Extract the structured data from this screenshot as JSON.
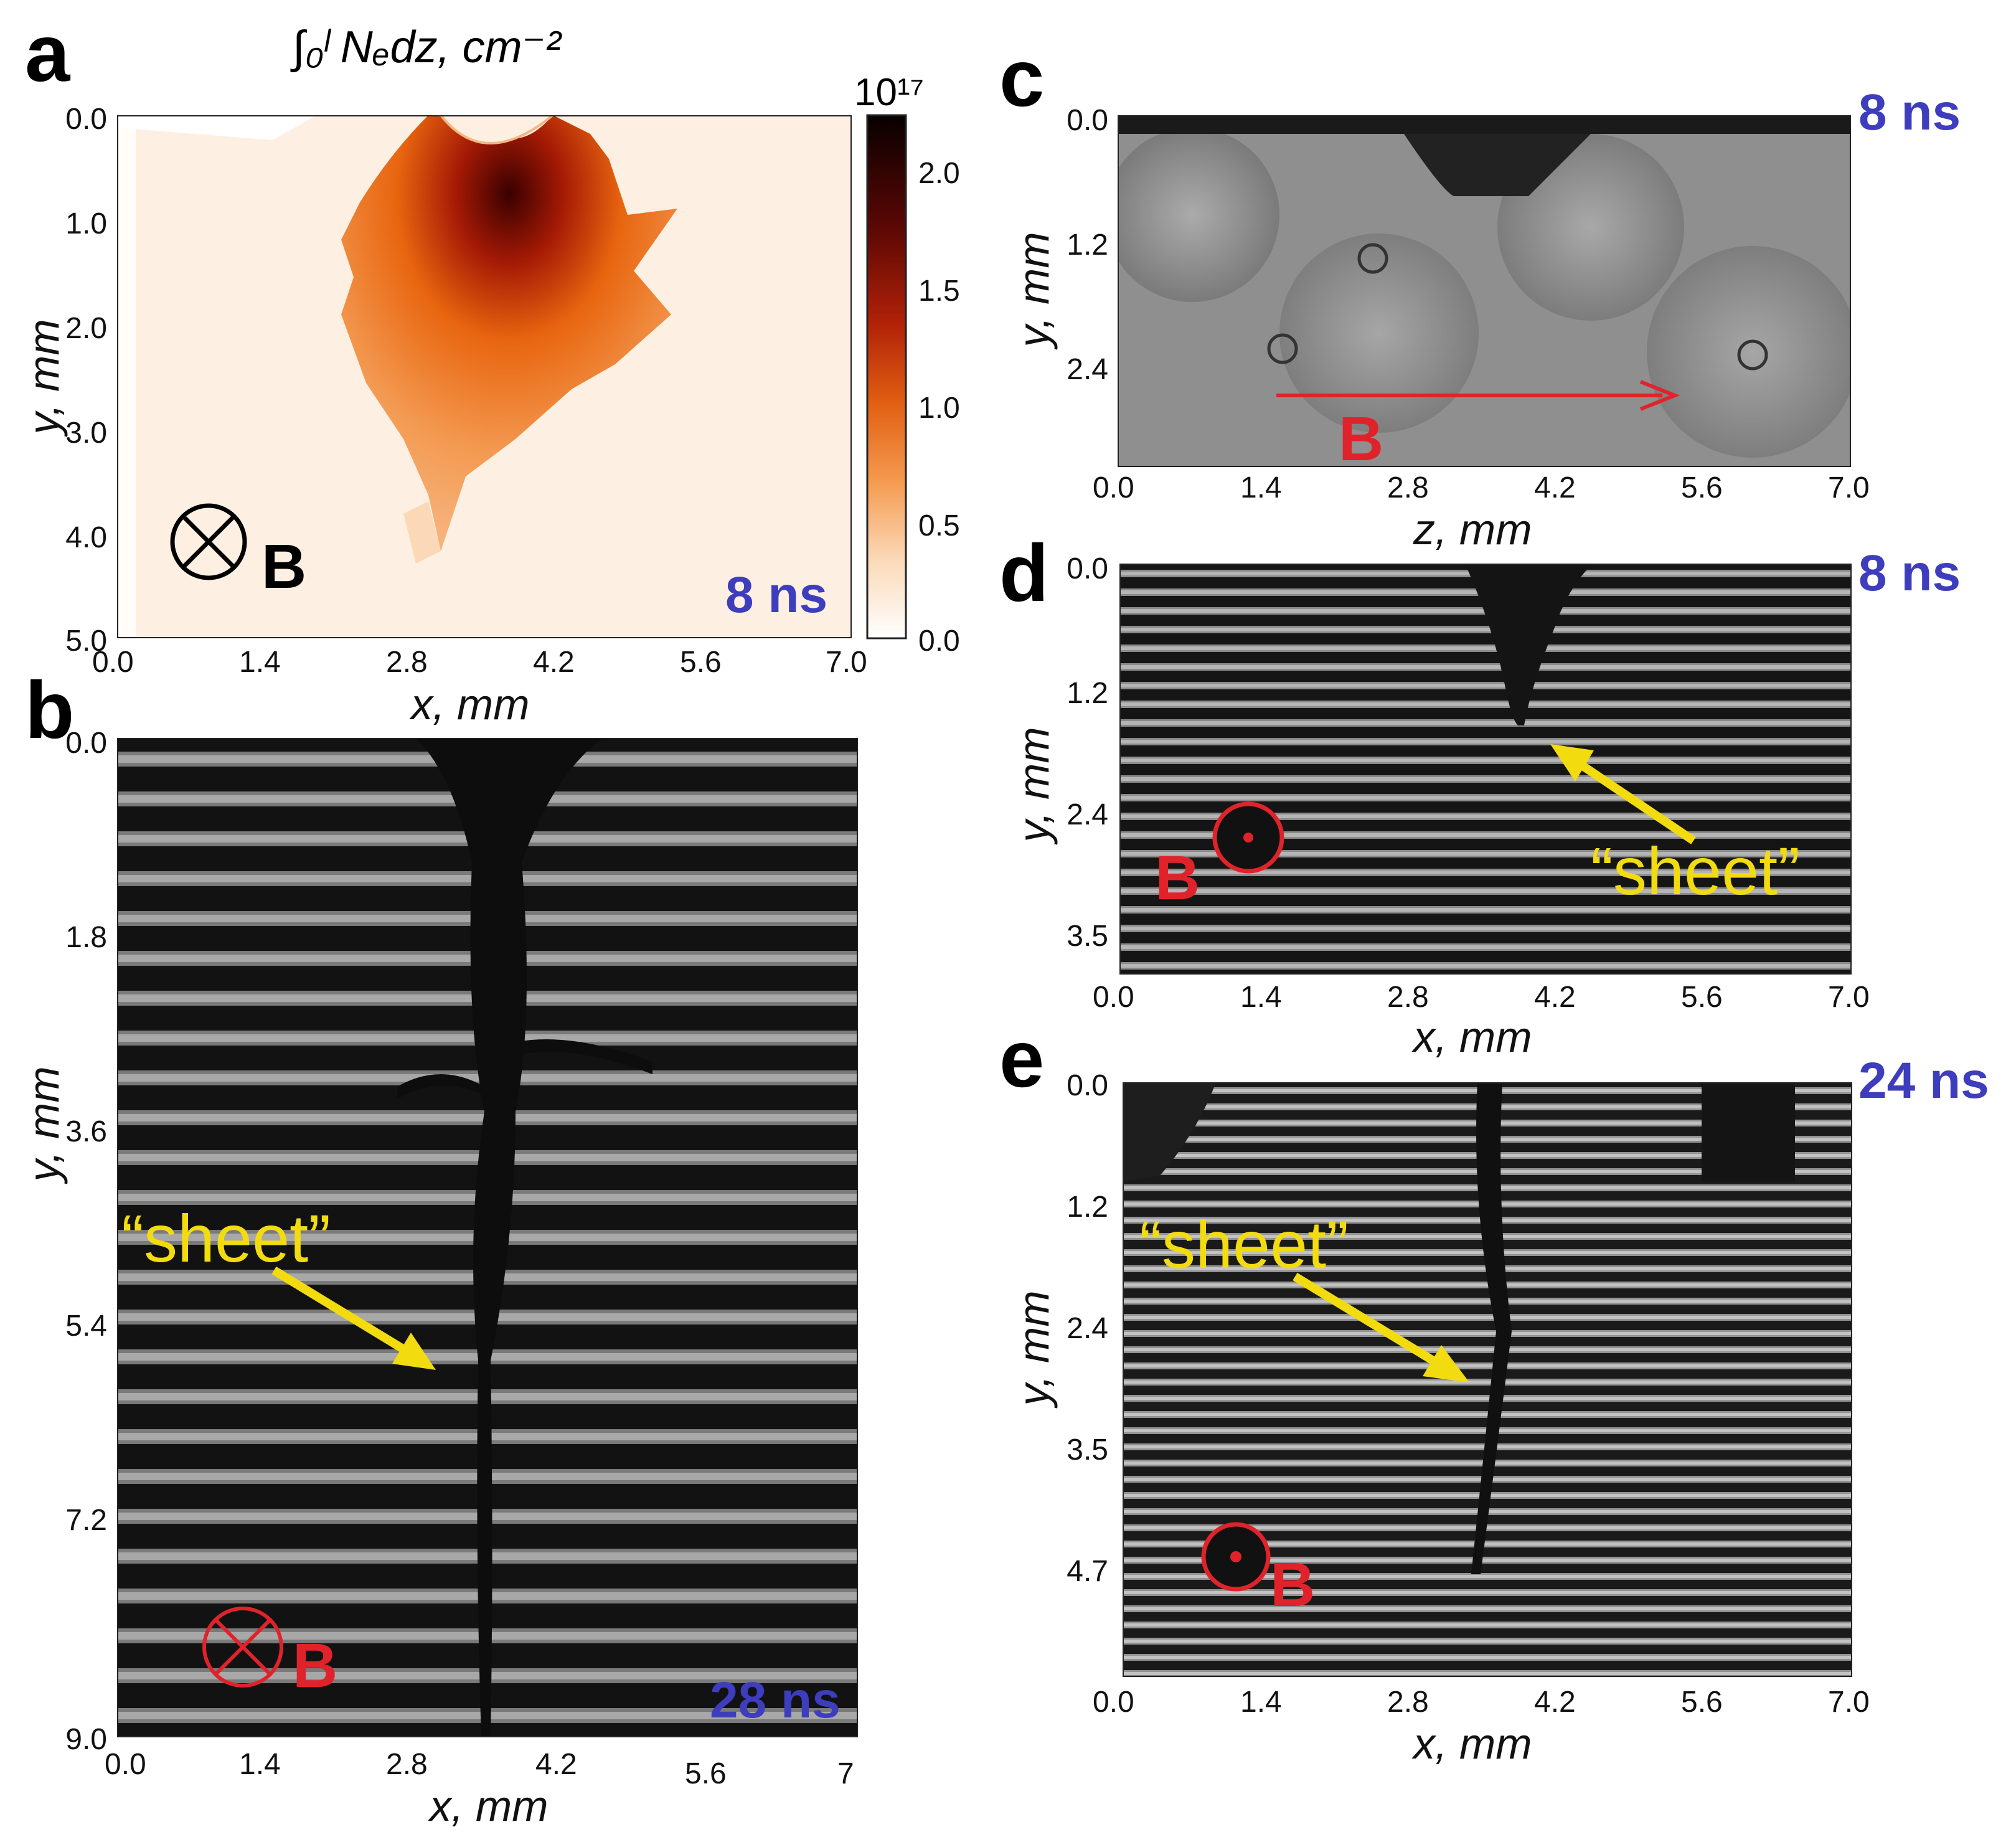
{
  "colors": {
    "time_label": "#3d3dbd",
    "annotation_yellow": "#f2dc10",
    "field_red": "#e0232b",
    "field_black": "#000000"
  },
  "panels": {
    "a": {
      "letter": "a",
      "title": "∫₀ˡ Nₑdz, cm⁻²",
      "colorbar_exponent": "10¹⁷",
      "colorbar_ticks": [
        "2.0",
        "1.5",
        "1.0",
        "0.5",
        "0.0"
      ],
      "y_ticks": [
        "0.0",
        "1.0",
        "2.0",
        "3.0",
        "4.0",
        "5.0"
      ],
      "x_ticks": [
        "0.0",
        "1.4",
        "2.8",
        "4.2",
        "5.6",
        "7.0"
      ],
      "x_label": "x, mm",
      "y_label": "y, mm",
      "time": "8 ns",
      "field_label": "B",
      "field_icon": "field-into-page-icon"
    },
    "b": {
      "letter": "b",
      "y_ticks": [
        "0.0",
        "1.8",
        "3.6",
        "5.4",
        "7.2",
        "9.0"
      ],
      "x_ticks": [
        "0.0",
        "1.4",
        "2.8",
        "4.2",
        "5.6",
        "7"
      ],
      "x_label": "x, mm",
      "y_label": "y, mm",
      "time": "28 ns",
      "annotation": "“sheet”",
      "field_label": "B",
      "field_icon": "field-into-page-icon"
    },
    "c": {
      "letter": "c",
      "y_ticks": [
        "0.0",
        "1.2",
        "2.4"
      ],
      "x_ticks": [
        "0.0",
        "1.4",
        "2.8",
        "4.2",
        "5.6",
        "7.0"
      ],
      "x_label": "z, mm",
      "y_label": "y, mm",
      "time": "8 ns",
      "field_label": "B",
      "field_icon": "field-arrow-icon"
    },
    "d": {
      "letter": "d",
      "y_ticks": [
        "0.0",
        "1.2",
        "2.4",
        "3.5"
      ],
      "x_ticks": [
        "0.0",
        "1.4",
        "2.8",
        "4.2",
        "5.6",
        "7.0"
      ],
      "x_label": "x, mm",
      "y_label": "y, mm",
      "time": "8 ns",
      "annotation": "“sheet”",
      "field_label": "B",
      "field_icon": "field-out-of-page-icon"
    },
    "e": {
      "letter": "e",
      "y_ticks": [
        "0.0",
        "1.2",
        "2.4",
        "3.5",
        "4.7"
      ],
      "x_ticks": [
        "0.0",
        "1.4",
        "2.8",
        "4.2",
        "5.6",
        "7.0"
      ],
      "x_label": "x, mm",
      "y_label": "y, mm",
      "time": "24 ns",
      "annotation": "“sheet”",
      "field_label": "B",
      "field_icon": "field-out-of-page-icon"
    }
  }
}
